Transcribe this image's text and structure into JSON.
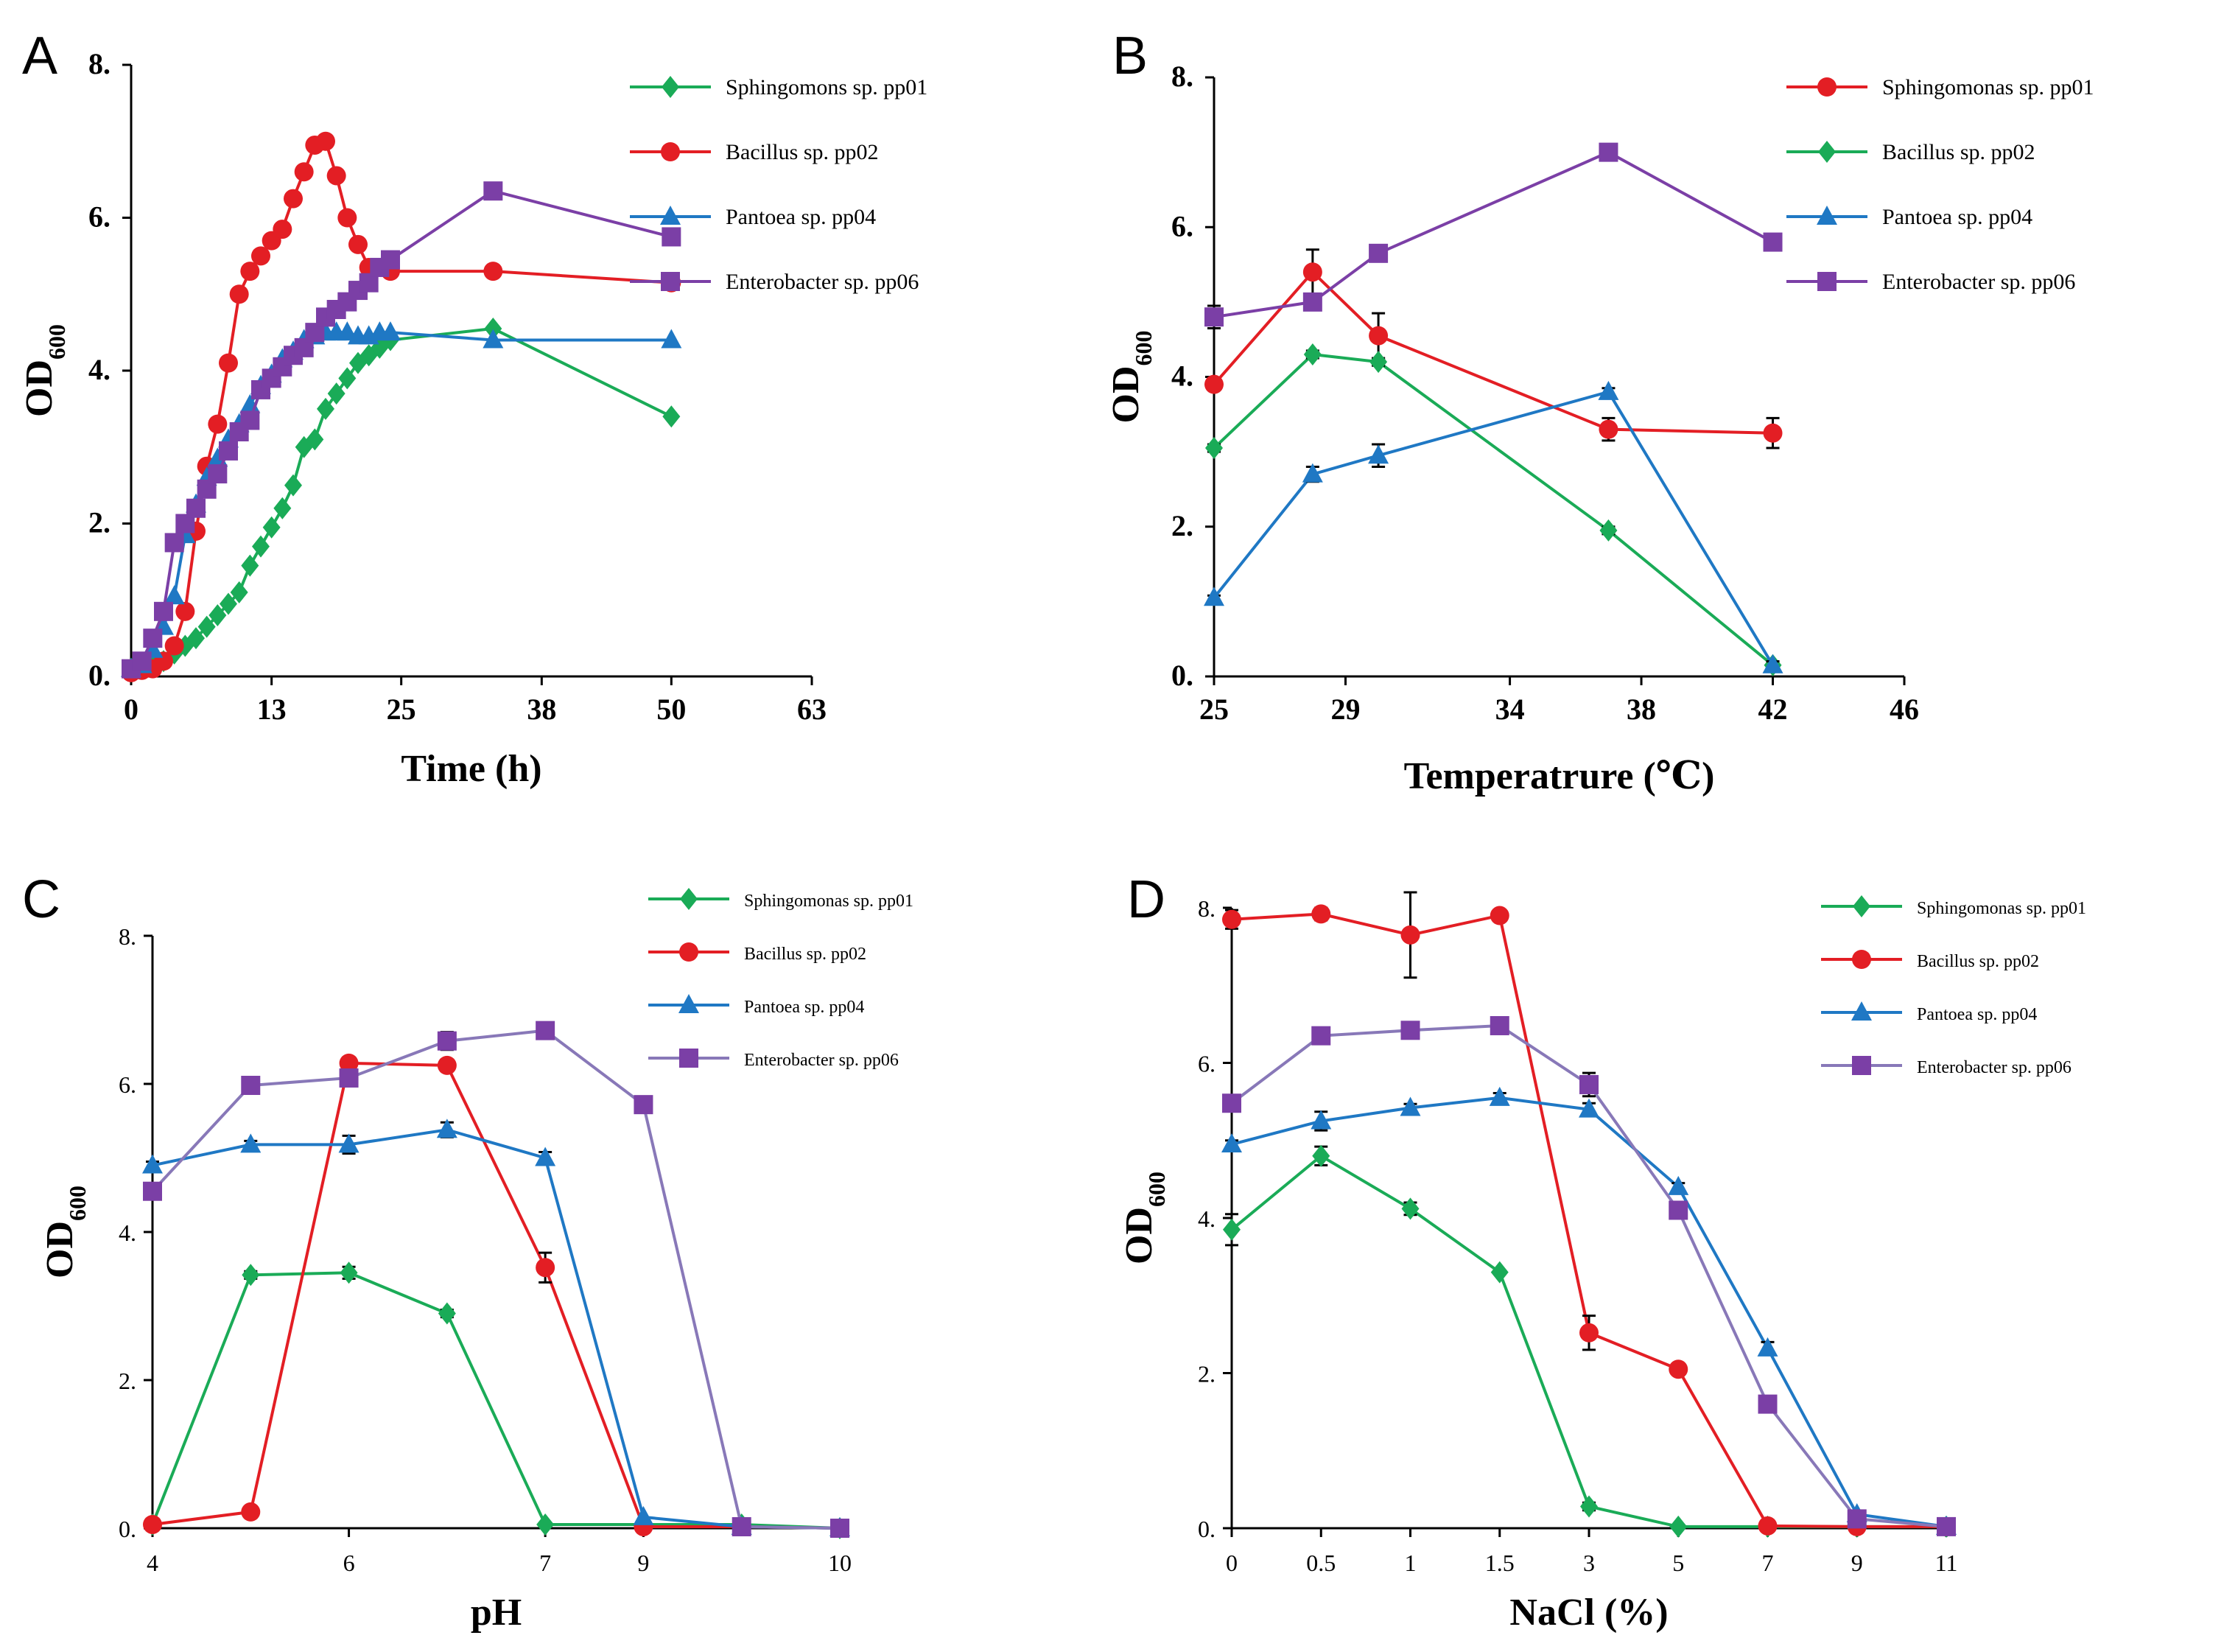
{
  "figure": {
    "panels": [
      "A",
      "B",
      "C",
      "D"
    ]
  },
  "chart_data": [
    {
      "panel": "A",
      "type": "line",
      "title": "",
      "xlabel": "Time (h)",
      "ylabel": "OD",
      "ylabel_sub": "600",
      "xlim": [
        0,
        63
      ],
      "ylim": [
        0,
        8
      ],
      "xticks": [
        0,
        13,
        25,
        38,
        50,
        63
      ],
      "xtick_labels": [
        "0",
        "13",
        "25",
        "38",
        "50",
        "63"
      ],
      "yticks": [
        0,
        2,
        4,
        6,
        8
      ],
      "ytick_labels": [
        "0.",
        "2.",
        "4.",
        "6.",
        "8."
      ],
      "series": [
        {
          "name": "Sphingomons sp. pp01",
          "color": "#1aab57",
          "marker": "diamond",
          "x": [
            0,
            1,
            2,
            3,
            4,
            5,
            6,
            7,
            8,
            9,
            10,
            11,
            12,
            13,
            14,
            15,
            16,
            17,
            18,
            19,
            20,
            21,
            22,
            23,
            24,
            33.5,
            50
          ],
          "y": [
            0.1,
            0.1,
            0.15,
            0.2,
            0.3,
            0.4,
            0.5,
            0.65,
            0.8,
            0.95,
            1.1,
            1.45,
            1.7,
            1.95,
            2.2,
            2.5,
            3.0,
            3.1,
            3.5,
            3.7,
            3.9,
            4.1,
            4.2,
            4.3,
            4.4,
            4.55,
            3.4
          ]
        },
        {
          "name": "Bacillus sp. pp02",
          "color": "#e31e24",
          "marker": "circle",
          "x": [
            0,
            1,
            2,
            3,
            4,
            5,
            6,
            7,
            8,
            9,
            10,
            11,
            12,
            13,
            14,
            15,
            16,
            17,
            18,
            19,
            20,
            21,
            22,
            24,
            33.5,
            50
          ],
          "y": [
            0.05,
            0.08,
            0.1,
            0.2,
            0.4,
            0.85,
            1.9,
            2.75,
            3.3,
            4.1,
            5.0,
            5.3,
            5.5,
            5.7,
            5.85,
            6.25,
            6.6,
            6.95,
            7.0,
            6.55,
            6.0,
            5.65,
            5.35,
            5.3,
            5.3,
            5.15
          ]
        },
        {
          "name": "Pantoea sp. pp04",
          "color": "#1f78c4",
          "marker": "triangle",
          "x": [
            0,
            1,
            2,
            3,
            4,
            5,
            6,
            7,
            8,
            9,
            10,
            11,
            12,
            13,
            14,
            15,
            16,
            17,
            18,
            19,
            20,
            21,
            22,
            23,
            24,
            33.5,
            50
          ],
          "y": [
            0.1,
            0.15,
            0.35,
            0.65,
            1.05,
            1.85,
            2.25,
            2.6,
            2.85,
            3.1,
            3.3,
            3.55,
            3.8,
            3.95,
            4.15,
            4.25,
            4.4,
            4.45,
            4.5,
            4.5,
            4.5,
            4.45,
            4.45,
            4.5,
            4.5,
            4.4,
            4.4
          ]
        },
        {
          "name": "Enterobacter sp. pp06",
          "color": "#7b3fa6",
          "marker": "square",
          "x": [
            0,
            1,
            2,
            3,
            4,
            5,
            6,
            7,
            8,
            9,
            10,
            11,
            12,
            13,
            14,
            15,
            16,
            17,
            18,
            19,
            20,
            21,
            22,
            23,
            24,
            33.5,
            50
          ],
          "y": [
            0.1,
            0.2,
            0.5,
            0.85,
            1.75,
            2.0,
            2.2,
            2.45,
            2.65,
            2.95,
            3.2,
            3.35,
            3.75,
            3.9,
            4.05,
            4.2,
            4.3,
            4.5,
            4.7,
            4.8,
            4.9,
            5.05,
            5.15,
            5.35,
            5.45,
            6.35,
            5.75
          ]
        }
      ],
      "legend_position": "top-right"
    },
    {
      "panel": "B",
      "type": "line",
      "title": "",
      "xlabel": "Temperatrure (℃)",
      "ylabel": "OD",
      "ylabel_sub": "600",
      "xlim": [
        25,
        46
      ],
      "ylim": [
        0,
        8
      ],
      "xticks": [
        25,
        29,
        34,
        38,
        42,
        46
      ],
      "xtick_labels": [
        "25",
        "29",
        "34",
        "38",
        "42",
        "46"
      ],
      "yticks": [
        0,
        2,
        4,
        6,
        8
      ],
      "ytick_labels": [
        "0.",
        "2.",
        "4.",
        "6.",
        "8."
      ],
      "series": [
        {
          "name": "Sphingomonas sp. pp01",
          "color": "#e31e24",
          "marker": "circle",
          "x": [
            25,
            28,
            30,
            37,
            42
          ],
          "y": [
            3.9,
            5.4,
            4.55,
            3.3,
            3.25
          ],
          "err": [
            0.05,
            0.3,
            0.3,
            0.15,
            0.2
          ]
        },
        {
          "name": "Bacillus sp. pp02",
          "color": "#1aab57",
          "marker": "diamond",
          "x": [
            25,
            28,
            30,
            37,
            42
          ],
          "y": [
            3.05,
            4.3,
            4.2,
            1.95,
            0.15
          ],
          "err": [
            0.05,
            0.05,
            0.05,
            0.05,
            0.05
          ]
        },
        {
          "name": "Pantoea sp. pp04",
          "color": "#1f78c4",
          "marker": "triangle",
          "x": [
            25,
            28,
            30,
            37,
            42
          ],
          "y": [
            1.05,
            2.7,
            2.95,
            3.8,
            0.15
          ],
          "err": [
            0.03,
            0.1,
            0.15,
            0.05,
            0.05
          ]
        },
        {
          "name": "Enterobacter sp. pp06",
          "color": "#7b3fa6",
          "marker": "square",
          "x": [
            25,
            28,
            30,
            37,
            42
          ],
          "y": [
            4.8,
            5.0,
            5.65,
            7.0,
            5.8
          ],
          "err": [
            0.15,
            0.05,
            0.05,
            0.1,
            0.05
          ]
        }
      ],
      "legend_position": "top-right"
    },
    {
      "panel": "C",
      "type": "line",
      "title": "",
      "xlabel": "pH",
      "ylabel": "OD",
      "ylabel_sub": "600",
      "xlim": [
        0,
        7
      ],
      "ylim": [
        0,
        8
      ],
      "xticks": [
        0,
        2,
        4,
        5,
        7
      ],
      "xtick_labels": [
        "4",
        "6",
        "7",
        "9",
        "10"
      ],
      "yticks": [
        0,
        2,
        4,
        6,
        8
      ],
      "ytick_labels": [
        "0.",
        "2.",
        "4.",
        "6.",
        "8."
      ],
      "series": [
        {
          "name": "Sphingomonas sp. pp01",
          "color": "#1aab57",
          "marker": "diamond",
          "x": [
            0,
            1,
            2,
            3,
            4,
            5,
            6,
            7
          ],
          "y": [
            0.05,
            3.42,
            3.45,
            2.9,
            0.05,
            0.05,
            0.05,
            0.0
          ],
          "err": [
            0,
            0.05,
            0.08,
            0.05,
            0,
            0,
            0,
            0
          ]
        },
        {
          "name": "Bacillus sp. pp02",
          "color": "#e31e24",
          "marker": "circle",
          "x": [
            0,
            1,
            2,
            3,
            4,
            5,
            6,
            7
          ],
          "y": [
            0.05,
            0.22,
            6.28,
            6.25,
            3.52,
            0.02,
            0.02,
            0.0
          ],
          "err": [
            0,
            0,
            0.05,
            0.05,
            0.2,
            0,
            0,
            0
          ]
        },
        {
          "name": "Pantoea sp. pp04",
          "color": "#1f78c4",
          "marker": "triangle",
          "x": [
            0,
            1,
            2,
            3,
            4,
            5,
            6,
            7
          ],
          "y": [
            4.9,
            5.18,
            5.18,
            5.38,
            5.0,
            0.15,
            0.02,
            0.0
          ],
          "err": [
            0.05,
            0.05,
            0.12,
            0.1,
            0.08,
            0,
            0,
            0
          ]
        },
        {
          "name": "Enterobacter sp. pp06",
          "color": "#8878b8",
          "markerColor": "#7b3fa6",
          "marker": "square",
          "x": [
            0,
            1,
            2,
            3,
            4,
            5,
            6,
            7
          ],
          "y": [
            4.55,
            5.98,
            6.08,
            6.58,
            6.72,
            5.72,
            0.02,
            0.0
          ],
          "err": [
            0,
            0,
            0.05,
            0.12,
            0,
            0,
            0,
            0
          ]
        }
      ],
      "legend_position": "top-right"
    },
    {
      "panel": "D",
      "type": "line",
      "title": "",
      "xlabel": "NaCl (%)",
      "ylabel": "OD",
      "ylabel_sub": "600",
      "xlim": [
        0,
        8
      ],
      "ylim": [
        0,
        8
      ],
      "xticks": [
        0,
        1,
        2,
        3,
        4,
        5,
        6,
        7,
        8
      ],
      "xtick_labels": [
        "0",
        "0.5",
        "1",
        "1.5",
        "3",
        "5",
        "7",
        "9",
        "11"
      ],
      "yticks": [
        0,
        2,
        4,
        6,
        8
      ],
      "ytick_labels": [
        "0.",
        "2.",
        "4.",
        "6.",
        "8."
      ],
      "series": [
        {
          "name": "Sphingomonas sp. pp01",
          "color": "#1aab57",
          "marker": "diamond",
          "x": [
            0,
            1,
            2,
            3,
            4,
            5,
            6,
            7,
            8
          ],
          "y": [
            3.85,
            4.8,
            4.12,
            3.3,
            0.28,
            0.02,
            0.02,
            0.02,
            0.02
          ],
          "err": [
            0.2,
            0.12,
            0.08,
            0.02,
            0.05,
            0,
            0,
            0,
            0
          ]
        },
        {
          "name": "Bacillus sp. pp02",
          "color": "#e31e24",
          "marker": "circle",
          "x": [
            0,
            1,
            2,
            3,
            4,
            5,
            6,
            7,
            8
          ],
          "y": [
            7.85,
            7.92,
            7.65,
            7.9,
            2.52,
            2.05,
            0.03,
            0.02,
            0.02
          ],
          "err": [
            0.12,
            0.08,
            0.55,
            0.05,
            0.22,
            0,
            0,
            0,
            0
          ]
        },
        {
          "name": "Pantoea sp. pp04",
          "color": "#1f78c4",
          "marker": "triangle",
          "x": [
            0,
            1,
            2,
            3,
            4,
            5,
            6,
            7,
            8
          ],
          "y": [
            4.95,
            5.25,
            5.42,
            5.55,
            5.4,
            4.4,
            2.32,
            0.18,
            0.02
          ],
          "err": [
            0.05,
            0.12,
            0.05,
            0.06,
            0.08,
            0.05,
            0.08,
            0,
            0
          ]
        },
        {
          "name": "Enterobacter sp. pp06",
          "color": "#8878b8",
          "markerColor": "#7b3fa6",
          "marker": "square",
          "x": [
            0,
            1,
            2,
            3,
            4,
            5,
            6,
            7,
            8
          ],
          "y": [
            5.48,
            6.35,
            6.42,
            6.48,
            5.72,
            4.1,
            1.6,
            0.12,
            0.02
          ],
          "err": [
            0,
            0,
            0,
            0,
            0.15,
            0,
            0,
            0,
            0
          ]
        }
      ],
      "legend_position": "top-right"
    }
  ]
}
